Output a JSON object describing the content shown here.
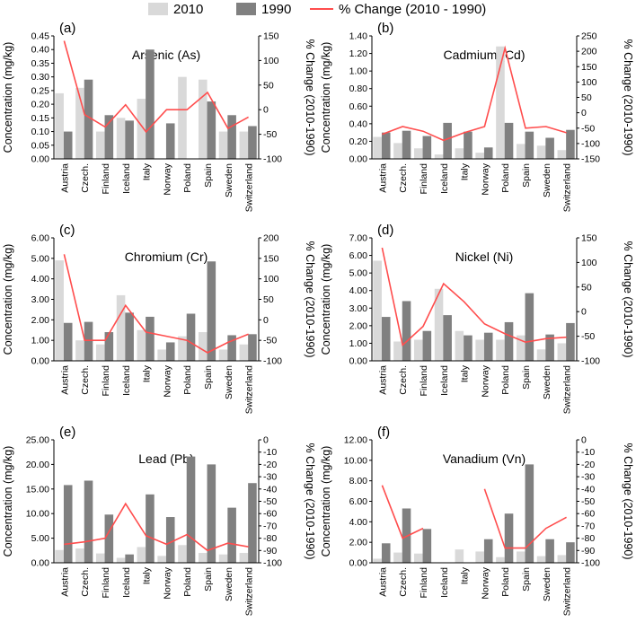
{
  "legend": {
    "items": [
      {
        "label": "2010",
        "color": "#d9d9d9"
      },
      {
        "label": "1990",
        "color": "#808080"
      },
      {
        "label": "% Change (2010 - 1990)",
        "color": "#ff4d4d"
      }
    ]
  },
  "chart_data": [
    {
      "panel": "(a)",
      "type": "bar",
      "title": "Arsenic (As)",
      "categories": [
        "Austria",
        "Czech.",
        "Finland",
        "Iceland",
        "Italy",
        "Norway",
        "Poland",
        "Spain",
        "Sweden",
        "Switzerland"
      ],
      "ylabel": "Concentration (mg/kg)",
      "y2label": "% Change (2010-1990)",
      "ylim": [
        0,
        0.45
      ],
      "yticks": [
        0,
        0.05,
        0.1,
        0.15,
        0.2,
        0.25,
        0.3,
        0.35,
        0.4,
        0.45
      ],
      "y2lim": [
        -100,
        150
      ],
      "y2ticks": [
        -100,
        -50,
        0,
        50,
        100,
        150
      ],
      "series": [
        {
          "name": "2010",
          "values": [
            0.24,
            0.26,
            0.1,
            0.15,
            0.22,
            0.0,
            0.3,
            0.29,
            0.1,
            0.1
          ]
        },
        {
          "name": "1990",
          "values": [
            0.1,
            0.29,
            0.16,
            0.14,
            0.4,
            0.13,
            0.0,
            0.21,
            0.16,
            0.12
          ]
        },
        {
          "name": "% Change (2010 - 1990)",
          "axis": "right",
          "values": [
            140,
            -10,
            -35,
            10,
            -45,
            0,
            0,
            35,
            -38,
            -15
          ]
        }
      ]
    },
    {
      "panel": "(b)",
      "type": "bar",
      "title": "Cadmium (Cd)",
      "categories": [
        "Austria",
        "Czech.",
        "Finland",
        "Iceland",
        "Italy",
        "Norway",
        "Poland",
        "Spain",
        "Sweden",
        "Switzerland"
      ],
      "ylabel": "Concentration (mg/kg)",
      "y2label": "% Change (2010-1990)",
      "ylim": [
        0,
        1.4
      ],
      "yticks": [
        0,
        0.2,
        0.4,
        0.6,
        0.8,
        1.0,
        1.2,
        1.4
      ],
      "y2lim": [
        -150,
        250
      ],
      "y2ticks": [
        -150,
        -100,
        -50,
        0,
        50,
        100,
        150,
        200,
        250
      ],
      "series": [
        {
          "name": "2010",
          "values": [
            0.25,
            0.18,
            0.12,
            0.05,
            0.12,
            0.07,
            1.28,
            0.17,
            0.15,
            0.1
          ]
        },
        {
          "name": "1990",
          "values": [
            0.3,
            0.32,
            0.26,
            0.41,
            0.31,
            0.13,
            0.41,
            0.31,
            0.24,
            0.33
          ]
        },
        {
          "name": "% Change (2010 - 1990)",
          "axis": "right",
          "values": [
            -70,
            -45,
            -60,
            -90,
            -65,
            -45,
            210,
            -50,
            -45,
            -65
          ]
        }
      ]
    },
    {
      "panel": "(c)",
      "type": "bar",
      "title": "Chromium (Cr)",
      "categories": [
        "Austria",
        "Czech.",
        "Finland",
        "Iceland",
        "Italy",
        "Norway",
        "Poland",
        "Spain",
        "Sweden",
        "Switzerland"
      ],
      "ylabel": "Concentration (mg/kg)",
      "y2label": "% Change (2010-1990)",
      "ylim": [
        0,
        6.0
      ],
      "yticks": [
        0,
        1,
        2,
        3,
        4,
        5,
        6
      ],
      "y2lim": [
        -100,
        200
      ],
      "y2ticks": [
        -100,
        -50,
        0,
        50,
        100,
        150,
        200
      ],
      "series": [
        {
          "name": "2010",
          "values": [
            4.9,
            1.0,
            0.8,
            3.2,
            1.5,
            0.55,
            1.2,
            1.4,
            0.55,
            0.8
          ]
        },
        {
          "name": "1990",
          "values": [
            1.85,
            1.9,
            1.4,
            2.35,
            2.15,
            0.9,
            2.3,
            4.85,
            1.25,
            1.3
          ]
        },
        {
          "name": "% Change (2010 - 1990)",
          "axis": "right",
          "values": [
            160,
            -50,
            -50,
            35,
            -30,
            -40,
            -50,
            -80,
            -55,
            -35
          ]
        }
      ]
    },
    {
      "panel": "(d)",
      "type": "bar",
      "title": "Nickel (Ni)",
      "categories": [
        "Austria",
        "Czech.",
        "Finland",
        "Iceland",
        "Italy",
        "Norway",
        "Poland",
        "Spain",
        "Sweden",
        "Switzerland"
      ],
      "ylabel": "Concentration (mg/kg)",
      "y2label": "% Change (2010-1990)",
      "ylim": [
        0,
        7.0
      ],
      "yticks": [
        0,
        1,
        2,
        3,
        4,
        5,
        6,
        7
      ],
      "y2lim": [
        -100,
        150
      ],
      "y2ticks": [
        -100,
        -50,
        0,
        50,
        100,
        150
      ],
      "series": [
        {
          "name": "2010",
          "values": [
            5.7,
            1.1,
            1.2,
            4.1,
            1.7,
            1.2,
            1.2,
            1.45,
            0.65,
            1.0
          ]
        },
        {
          "name": "1990",
          "values": [
            2.5,
            3.4,
            1.7,
            2.6,
            1.45,
            1.6,
            2.2,
            3.85,
            1.5,
            2.15
          ]
        },
        {
          "name": "% Change (2010 - 1990)",
          "axis": "right",
          "values": [
            130,
            -68,
            -30,
            57,
            20,
            -25,
            -45,
            -62,
            -55,
            -52
          ]
        }
      ]
    },
    {
      "panel": "(e)",
      "type": "bar",
      "title": "Lead (Pb)",
      "categories": [
        "Austria",
        "Czech.",
        "Finland",
        "Iceland",
        "Italy",
        "Norway",
        "Poland",
        "Spain",
        "Sweden",
        "Switzerland"
      ],
      "ylabel": "Concentration (mg/kg)",
      "y2label": "% Change (2010-1990)",
      "ylim": [
        0,
        25.0
      ],
      "yticks": [
        0,
        5,
        10,
        15,
        20,
        25
      ],
      "y2lim": [
        -100,
        0
      ],
      "y2ticks": [
        -100,
        -90,
        -80,
        -70,
        -60,
        -50,
        -40,
        -30,
        -20,
        -10,
        0
      ],
      "series": [
        {
          "name": "2010",
          "values": [
            2.6,
            2.9,
            1.9,
            1.0,
            3.2,
            1.4,
            3.6,
            2.0,
            1.7,
            2.0
          ]
        },
        {
          "name": "1990",
          "values": [
            15.8,
            16.7,
            9.8,
            1.7,
            13.9,
            9.3,
            21.6,
            20.0,
            11.2,
            16.2
          ]
        },
        {
          "name": "% Change (2010 - 1990)",
          "axis": "right",
          "values": [
            -85,
            -83,
            -80,
            -52,
            -78,
            -85,
            -77,
            -90,
            -84,
            -87
          ]
        }
      ]
    },
    {
      "panel": "(f)",
      "type": "bar",
      "title": "Vanadium (Vn)",
      "categories": [
        "Austria",
        "Czech.",
        "Finland",
        "Iceland",
        "Italy",
        "Norway",
        "Poland",
        "Spain",
        "Sweden",
        "Switzerland"
      ],
      "ylabel": "Concentration (mg/kg)",
      "y2label": "% Change (2010-1990)",
      "ylim": [
        0,
        12.0
      ],
      "yticks": [
        0,
        2,
        4,
        6,
        8,
        10,
        12
      ],
      "y2lim": [
        -100,
        0
      ],
      "y2ticks": [
        -100,
        -90,
        -80,
        -70,
        -60,
        -50,
        -40,
        -30,
        -20,
        -10,
        0
      ],
      "series": [
        {
          "name": "2010",
          "values": [
            0.4,
            1.0,
            0.9,
            0.0,
            1.3,
            1.1,
            0.55,
            1.1,
            0.65,
            0.75
          ]
        },
        {
          "name": "1990",
          "values": [
            1.9,
            5.3,
            3.3,
            0.0,
            0.0,
            2.3,
            4.8,
            9.6,
            2.3,
            2.0
          ]
        },
        {
          "name": "% Change (2010 - 1990)",
          "axis": "right",
          "values": [
            -37,
            -80,
            -72,
            null,
            null,
            -40,
            -88,
            -88,
            -72,
            -63
          ]
        }
      ]
    }
  ]
}
